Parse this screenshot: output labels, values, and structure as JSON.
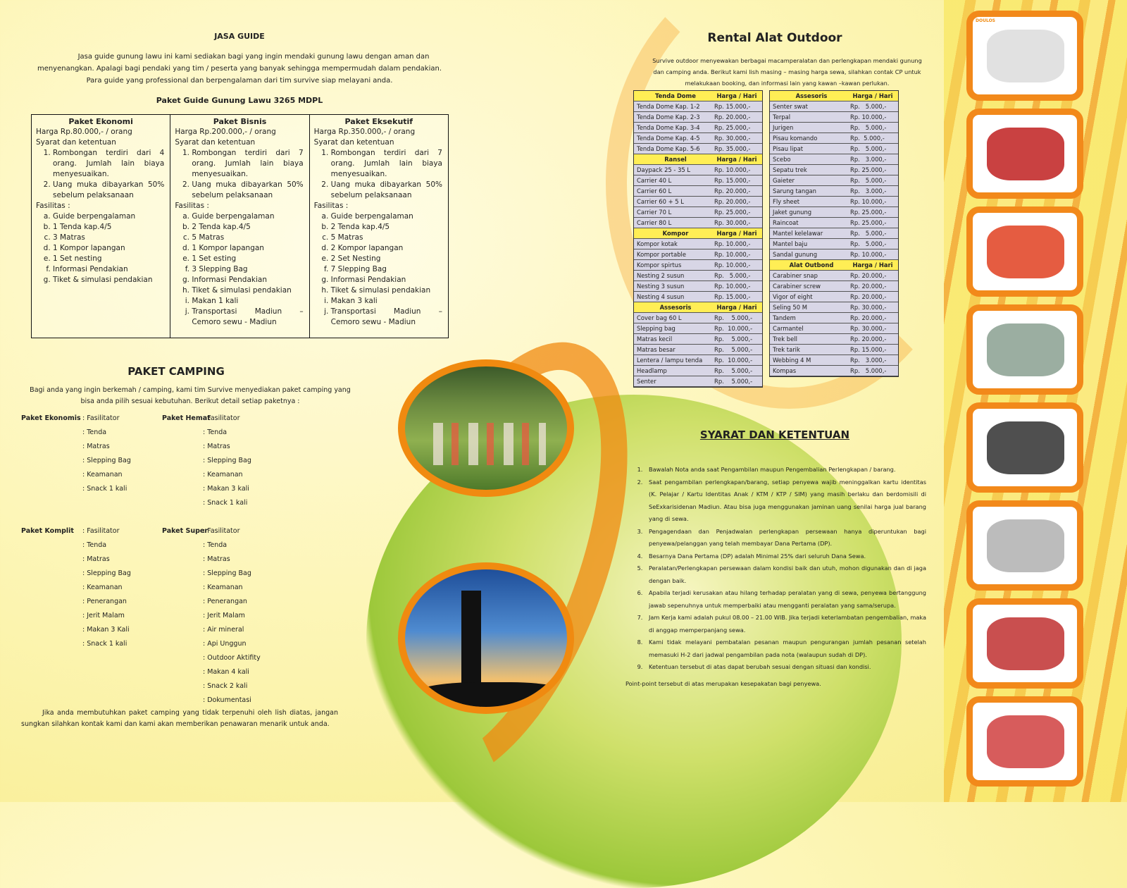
{
  "jasa_guide": {
    "title": "JASA GUIDE",
    "intro": "Jasa guide gunung lawu ini kami sediakan bagi yang ingin mendaki gunung lawu dengan aman dan menyenangkan. Apalagi bagi pendaki yang tim / peserta yang banyak sehingga mempermudah dalam pendakian. Para guide yang professional dan berpengalaman dari tim survive siap melayani anda.",
    "subtitle": "Paket Guide Gunung Lawu 3265 MDPL",
    "packages": [
      {
        "name": "Paket Ekonomi",
        "price": "Harga Rp.80.000,- / orang",
        "syarat_label": "Syarat dan ketentuan",
        "syarat": [
          "Rombongan terdiri dari 4 orang. Jumlah lain biaya menyesuaikan.",
          "Uang muka dibayarkan 50% sebelum pelaksanaan"
        ],
        "fasilitas_label": "Fasilitas :",
        "fasilitas": [
          "Guide berpengalaman",
          "1 Tenda kap.4/5",
          "3 Matras",
          "1 Kompor lapangan",
          "1 Set nesting",
          "Informasi Pendakian",
          "Tiket & simulasi pendakian"
        ]
      },
      {
        "name": "Paket Bisnis",
        "price": "Harga Rp.200.000,- / orang",
        "syarat_label": "Syarat dan ketentuan",
        "syarat": [
          "Rombongan terdiri dari 7 orang. Jumlah lain biaya menyesuaikan.",
          "Uang muka dibayarkan 50% sebelum pelaksanaan"
        ],
        "fasilitas_label": "Fasilitas :",
        "fasilitas": [
          "Guide berpengalaman",
          "2 Tenda kap.4/5",
          "5 Matras",
          "1 Kompor lapangan",
          "1 Set esting",
          "3 Slepping Bag",
          "Informasi Pendakian",
          "Tiket & simulasi pendakian",
          "Makan 1 kali",
          "Transportasi Madiun – Cemoro sewu - Madiun"
        ]
      },
      {
        "name": "Paket Eksekutif",
        "price": "Harga Rp.350.000,- / orang",
        "syarat_label": "Syarat dan ketentuan",
        "syarat": [
          "Rombongan terdiri dari 7 orang. Jumlah lain biaya menyesuaikan.",
          "Uang muka dibayarkan 50% sebelum pelaksanaan"
        ],
        "fasilitas_label": "Fasilitas :",
        "fasilitas": [
          "Guide berpengalaman",
          "2 Tenda kap.4/5",
          "5 Matras",
          "2 Kompor lapangan",
          "2 Set Nesting",
          "7 Slepping Bag",
          "Informasi Pendakian",
          "Tiket & simulasi pendakian",
          "Makan 3 kali",
          "Transportasi Madiun – Cemoro sewu - Madiun"
        ]
      }
    ]
  },
  "paket_camping": {
    "title": "PAKET CAMPING",
    "intro": "Bagi anda yang ingin berkemah / camping, kami tim Survive menyediakan paket camping yang bisa anda pilih sesuai kebutuhan. Berikut detail setiap paketnya :",
    "packages": [
      {
        "name": "Paket Ekonomis",
        "items": [
          ": Fasilitator",
          ": Tenda",
          ": Matras",
          ": Slepping Bag",
          ": Keamanan",
          ": Snack 1 kali"
        ]
      },
      {
        "name": "Paket Hemat",
        "items": [
          ": Fasilitator",
          ": Tenda",
          ": Matras",
          ": Slepping Bag",
          ": Keamanan",
          ": Makan 3 kali",
          ": Snack 1 kali"
        ]
      },
      {
        "name": "Paket Komplit",
        "items": [
          ": Fasilitator",
          ": Tenda",
          ": Matras",
          ": Slepping Bag",
          ": Keamanan",
          ": Penerangan",
          ": Jerit Malam",
          ": Makan 3 Kali",
          ": Snack 1 kali"
        ]
      },
      {
        "name": "Paket Super",
        "items": [
          ": Fasilitator",
          ": Tenda",
          ": Matras",
          ": Slepping Bag",
          ": Keamanan",
          ": Penerangan",
          ": Jerit Malam",
          ": Air mineral",
          ": Api Unggun",
          ": Outdoor Aktifity",
          ": Makan 4 kali",
          ": Snack 2 kali",
          ": Dokumentasi"
        ]
      }
    ],
    "closing": "Jika anda membutuhkan paket camping yang tidak terpenuhi oleh lish diatas, jangan sungkan silahkan kontak kami dan kami akan memberikan penawaran menarik untuk anda."
  },
  "rental": {
    "title": "Rental Alat Outdoor",
    "intro": "Survive outdoor menyewakan berbagai macamperalatan dan perlengkapan mendaki gunung dan camping anda. Berikut kami lish masing – masing harga sewa, silahkan contak CP untuk melakukaan booking, dan informasi lain yang kawan –kawan perlukan.",
    "price_header": "Harga / Hari",
    "left_table": [
      {
        "category": "Tenda Dome",
        "items": [
          [
            "Tenda Dome Kap. 1-2",
            "Rp. 15.000,-"
          ],
          [
            "Tenda Dome Kap. 2-3",
            "Rp. 20.000,-"
          ],
          [
            "Tenda Dome Kap. 3-4",
            "Rp. 25.000,-"
          ],
          [
            "Tenda Dome Kap. 4-5",
            "Rp. 30.000,-"
          ],
          [
            "Tenda Dome Kap. 5-6",
            "Rp. 35.000,-"
          ]
        ]
      },
      {
        "category": "Ransel",
        "items": [
          [
            "Daypack 25 - 35 L",
            "Rp. 10.000,-"
          ],
          [
            "Carrier 40 L",
            "Rp. 15.000,-"
          ],
          [
            "Carrier 60 L",
            "Rp. 20.000,-"
          ],
          [
            "Carrier 60 + 5 L",
            "Rp. 20.000,-"
          ],
          [
            "Carrier 70 L",
            "Rp. 25.000,-"
          ],
          [
            "Carrier 80 L",
            "Rp. 30.000,-"
          ]
        ]
      },
      {
        "category": "Kompor",
        "items": [
          [
            "Kompor kotak",
            "Rp. 10.000,-"
          ],
          [
            "Kompor portable",
            "Rp. 10.000,-"
          ],
          [
            "Kompor spirtus",
            "Rp. 10.000,-"
          ],
          [
            "Nesting 2 susun",
            "Rp.   5.000,-"
          ],
          [
            "Nesting 3 susun",
            "Rp. 10.000,-"
          ],
          [
            "Nesting 4 susun",
            "Rp. 15.000,-"
          ]
        ]
      },
      {
        "category": "Assesoris",
        "items": [
          [
            "Cover bag 60 L",
            "Rp.    5.000,-"
          ],
          [
            "Slepping bag",
            "Rp.  10.000,-"
          ],
          [
            "Matras kecil",
            "Rp.    5.000,-"
          ],
          [
            "Matras besar",
            "Rp.    5.000,-"
          ],
          [
            "Lentera / lampu tenda",
            "Rp.  10.000,-"
          ],
          [
            "Headlamp",
            "Rp.    5.000,-"
          ],
          [
            "Senter",
            "Rp.    5.000,-"
          ]
        ]
      }
    ],
    "right_table": [
      {
        "category": "Assesoris",
        "items": [
          [
            "Senter swat",
            "Rp.   5.000,-"
          ],
          [
            "Terpal",
            "Rp. 10.000,-"
          ],
          [
            "Jurigen",
            "Rp.   5.000,-"
          ],
          [
            "Pisau komando",
            "Rp.  5.000,-"
          ],
          [
            "Pisau lipat",
            "Rp.   5.000,-"
          ],
          [
            "Scebo",
            "Rp.   3.000,-"
          ],
          [
            "Sepatu  trek",
            "Rp. 25.000,-"
          ],
          [
            "Gaieter",
            "Rp.   5.000,-"
          ],
          [
            "Sarung tangan",
            "Rp.   3.000,-"
          ],
          [
            "Fly sheet",
            "Rp. 10.000,-"
          ],
          [
            "Jaket gunung",
            "Rp. 25.000,-"
          ],
          [
            "Raincoat",
            "Rp. 25.000,-"
          ],
          [
            "Mantel kelelawar",
            "Rp.   5.000,-"
          ],
          [
            "Mantel baju",
            "Rp.   5.000,-"
          ],
          [
            "Sandal gunung",
            "Rp. 10.000,-"
          ]
        ]
      },
      {
        "category": "Alat Outbond",
        "items": [
          [
            "Carabiner snap",
            "Rp. 20.000,-"
          ],
          [
            "Carabiner screw",
            "Rp. 20.000,-"
          ],
          [
            "Vigor of eight",
            "Rp. 20.000,-"
          ],
          [
            "Seling 50 M",
            "Rp. 30.000,-"
          ],
          [
            "Tandem",
            "Rp. 20.000,-"
          ],
          [
            "Carmantel",
            "Rp. 30.000,-"
          ],
          [
            "Trek bell",
            "Rp. 20.000,-"
          ],
          [
            "Trek tarik",
            "Rp. 15.000,-"
          ],
          [
            "Webbing 4 M",
            "Rp.   3.000,-"
          ],
          [
            "Kompas",
            "Rp.   5.000,-"
          ]
        ]
      }
    ]
  },
  "syarat": {
    "title": "SYARAT DAN KETENTUAN",
    "items": [
      "Bawalah Nota anda saat Pengambilan maupun Pengembalian Perlengkapan / barang.",
      "Saat pengambilan perlengkapan/barang, setiap penyewa wajib meninggalkan kartu identitas (K. Pelajar / Kartu Identitas Anak / KTM / KTP / SIM) yang masih berlaku dan berdomisili di SeExkarisidenan Madiun. Atau bisa juga menggunakan jaminan uang senilai harga jual barang yang di sewa.",
      "Pengagendaan dan Penjadwalan perlengkapan persewaan hanya diperuntukan bagi penyewa/pelanggan yang telah membayar Dana Pertama (DP).",
      "Besarnya Dana Pertama (DP) adalah Minimal 25% dari seluruh Dana Sewa.",
      "Peralatan/Perlengkapan persewaan dalam kondisi baik dan utuh, mohon digunakan dan di jaga dengan baik.",
      "Apabila terjadi kerusakan atau hilang terhadap peralatan yang di sewa, penyewa bertanggung jawab sepenuhnya untuk memperbaiki atau mengganti peralatan yang sama/serupa.",
      "Jam Kerja kami adalah pukul 08.00 – 21.00 WIB. Jika terjadi keterlambatan pengembalian, maka di anggap memperpanjang sewa.",
      "Kami tidak melayani pembatalan pesanan maupun pengurangan jumlah pesanan setelah memasuki H-2 dari jadwal pengambilan pada nota (walaupun sudah di DP).",
      "Ketentuan tersebut di atas dapat berubah sesuai dengan situasi dan kondisi."
    ],
    "footer": "Point-point tersebut di atas merupakan kesepakatan bagi penyewa."
  },
  "photos": {
    "camping": "camping-tents-photo",
    "summit": "summit-silhouette-photo",
    "strip": [
      "cooking-set",
      "gas-stove",
      "sleeping-bag",
      "dome-tent",
      "knives",
      "portable-stove",
      "headlamp",
      "backpack"
    ],
    "strip_logo": "DOULOS"
  },
  "colors": {
    "accent_orange": "#f08a10",
    "table_header_yellow": "#ffee55",
    "table_body": "#d8d6e6",
    "green": "#9cc83a"
  }
}
